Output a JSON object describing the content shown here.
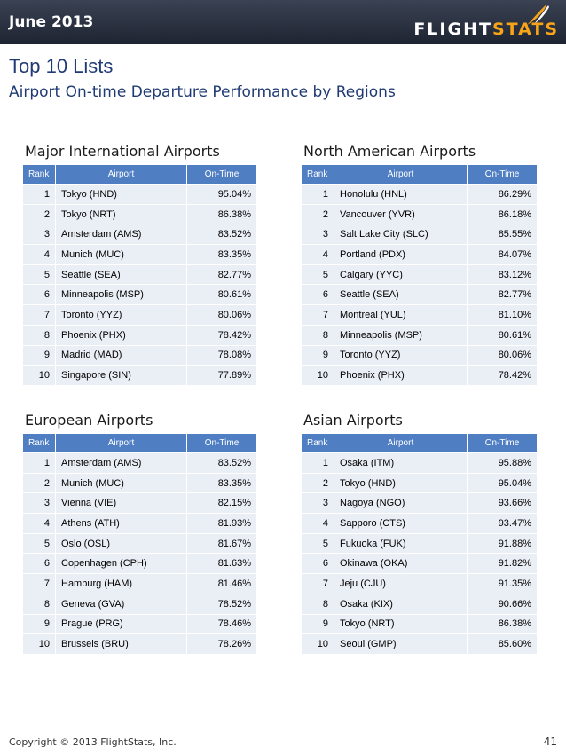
{
  "header": {
    "date": "June 2013",
    "logo": {
      "part1": "FLIGHT",
      "part2": "STATS",
      "accent_color": "#f7a418"
    }
  },
  "title": "Top 10 Lists",
  "subtitle": "Airport On-time Departure Performance by Regions",
  "columns": {
    "rank": "Rank",
    "airport": "Airport",
    "on_time": "On-Time"
  },
  "sections": [
    {
      "title": "Major International Airports",
      "rows": [
        {
          "rank": "1",
          "airport": "Tokyo (HND)",
          "on_time": "95.04%"
        },
        {
          "rank": "2",
          "airport": "Tokyo (NRT)",
          "on_time": "86.38%"
        },
        {
          "rank": "3",
          "airport": "Amsterdam (AMS)",
          "on_time": "83.52%"
        },
        {
          "rank": "4",
          "airport": "Munich (MUC)",
          "on_time": "83.35%"
        },
        {
          "rank": "5",
          "airport": "Seattle (SEA)",
          "on_time": "82.77%"
        },
        {
          "rank": "6",
          "airport": "Minneapolis (MSP)",
          "on_time": "80.61%"
        },
        {
          "rank": "7",
          "airport": "Toronto (YYZ)",
          "on_time": "80.06%"
        },
        {
          "rank": "8",
          "airport": "Phoenix (PHX)",
          "on_time": "78.42%"
        },
        {
          "rank": "9",
          "airport": "Madrid (MAD)",
          "on_time": "78.08%"
        },
        {
          "rank": "10",
          "airport": "Singapore (SIN)",
          "on_time": "77.89%"
        }
      ]
    },
    {
      "title": "North American Airports",
      "rows": [
        {
          "rank": "1",
          "airport": "Honolulu (HNL)",
          "on_time": "86.29%"
        },
        {
          "rank": "2",
          "airport": "Vancouver (YVR)",
          "on_time": "86.18%"
        },
        {
          "rank": "3",
          "airport": "Salt Lake City (SLC)",
          "on_time": "85.55%"
        },
        {
          "rank": "4",
          "airport": "Portland (PDX)",
          "on_time": "84.07%"
        },
        {
          "rank": "5",
          "airport": "Calgary (YYC)",
          "on_time": "83.12%"
        },
        {
          "rank": "6",
          "airport": "Seattle (SEA)",
          "on_time": "82.77%"
        },
        {
          "rank": "7",
          "airport": "Montreal (YUL)",
          "on_time": "81.10%"
        },
        {
          "rank": "8",
          "airport": "Minneapolis (MSP)",
          "on_time": "80.61%"
        },
        {
          "rank": "9",
          "airport": "Toronto (YYZ)",
          "on_time": "80.06%"
        },
        {
          "rank": "10",
          "airport": "Phoenix (PHX)",
          "on_time": "78.42%"
        }
      ]
    },
    {
      "title": "European Airports",
      "rows": [
        {
          "rank": "1",
          "airport": "Amsterdam (AMS)",
          "on_time": "83.52%"
        },
        {
          "rank": "2",
          "airport": "Munich (MUC)",
          "on_time": "83.35%"
        },
        {
          "rank": "3",
          "airport": "Vienna (VIE)",
          "on_time": "82.15%"
        },
        {
          "rank": "4",
          "airport": "Athens (ATH)",
          "on_time": "81.93%"
        },
        {
          "rank": "5",
          "airport": "Oslo (OSL)",
          "on_time": "81.67%"
        },
        {
          "rank": "6",
          "airport": "Copenhagen (CPH)",
          "on_time": "81.63%"
        },
        {
          "rank": "7",
          "airport": "Hamburg (HAM)",
          "on_time": "81.46%"
        },
        {
          "rank": "8",
          "airport": "Geneva (GVA)",
          "on_time": "78.52%"
        },
        {
          "rank": "9",
          "airport": "Prague (PRG)",
          "on_time": "78.46%"
        },
        {
          "rank": "10",
          "airport": "Brussels (BRU)",
          "on_time": "78.26%"
        }
      ]
    },
    {
      "title": "Asian Airports",
      "rows": [
        {
          "rank": "1",
          "airport": "Osaka (ITM)",
          "on_time": "95.88%"
        },
        {
          "rank": "2",
          "airport": "Tokyo (HND)",
          "on_time": "95.04%"
        },
        {
          "rank": "3",
          "airport": "Nagoya (NGO)",
          "on_time": "93.66%"
        },
        {
          "rank": "4",
          "airport": "Sapporo (CTS)",
          "on_time": "93.47%"
        },
        {
          "rank": "5",
          "airport": "Fukuoka (FUK)",
          "on_time": "91.88%"
        },
        {
          "rank": "6",
          "airport": "Okinawa (OKA)",
          "on_time": "91.82%"
        },
        {
          "rank": "7",
          "airport": "Jeju (CJU)",
          "on_time": "91.35%"
        },
        {
          "rank": "8",
          "airport": "Osaka (KIX)",
          "on_time": "90.66%"
        },
        {
          "rank": "9",
          "airport": "Tokyo (NRT)",
          "on_time": "86.38%"
        },
        {
          "rank": "10",
          "airport": "Seoul (GMP)",
          "on_time": "85.60%"
        }
      ]
    }
  ],
  "footer": {
    "copyright": "Copyright © 2013 FlightStats, Inc.",
    "page_number": "41"
  }
}
